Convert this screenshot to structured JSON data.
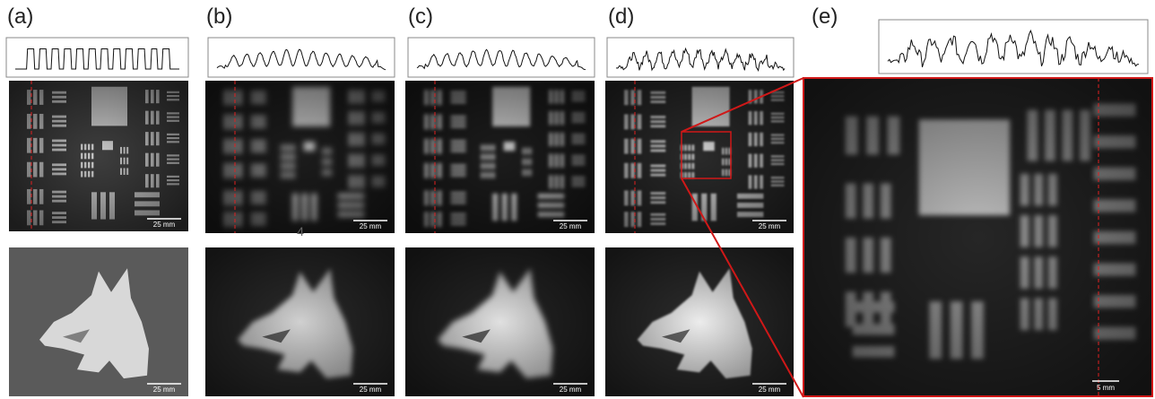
{
  "panels": [
    {
      "label": "(a)",
      "scale_bars": [
        "25 mm",
        "25 mm"
      ]
    },
    {
      "label": "(b)",
      "scale_bars": [
        "25 mm",
        "25 mm"
      ]
    },
    {
      "label": "(c)",
      "scale_bars": [
        "25 mm",
        "25 mm"
      ]
    },
    {
      "label": "(d)",
      "scale_bars": [
        "25 mm",
        "25 mm"
      ]
    },
    {
      "label": "(e)",
      "scale_bars": [
        "5 mm"
      ]
    }
  ],
  "stray_text": "4"
}
